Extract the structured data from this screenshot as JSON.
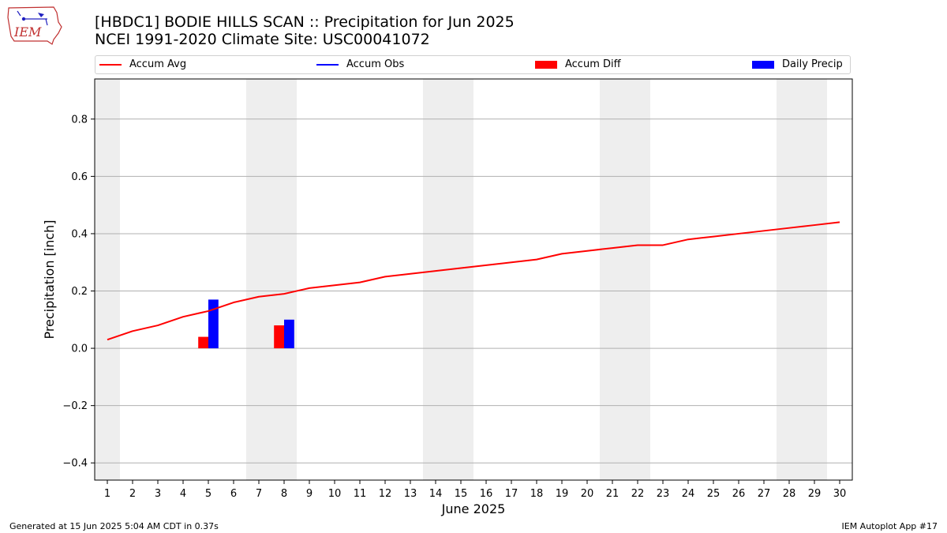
{
  "header": {
    "title_line1": "[HBDC1] BODIE HILLS SCAN :: Precipitation for Jun 2025",
    "title_line2": "NCEI 1991-2020 Climate Site: USC00041072"
  },
  "logo": {
    "text": "IEM"
  },
  "legend": {
    "items": [
      {
        "label": "Accum Avg",
        "kind": "line",
        "color": "#ff0000"
      },
      {
        "label": "Accum Obs",
        "kind": "line",
        "color": "#0000ff"
      },
      {
        "label": "Accum Diff",
        "kind": "box",
        "color": "#ff0000"
      },
      {
        "label": "Daily Precip",
        "kind": "box",
        "color": "#0000ff"
      }
    ]
  },
  "footer": {
    "left": "Generated at 15 Jun 2025 5:04 AM CDT in 0.37s",
    "right": "IEM Autoplot App #17"
  },
  "chart_data": {
    "type": "bar",
    "title": "[HBDC1] BODIE HILLS SCAN :: Precipitation for Jun 2025",
    "subtitle": "NCEI 1991-2020 Climate Site: USC00041072",
    "xlabel": "June 2025",
    "ylabel": "Precipitation [inch]",
    "xlim": [
      0.5,
      30.5
    ],
    "ylim": [
      -0.46,
      0.94
    ],
    "yticks": [
      -0.4,
      -0.2,
      0.0,
      0.2,
      0.4,
      0.6,
      0.8
    ],
    "ytick_labels": [
      "−0.4",
      "−0.2",
      "0.0",
      "0.2",
      "0.4",
      "0.6",
      "0.8"
    ],
    "days": [
      1,
      2,
      3,
      4,
      5,
      6,
      7,
      8,
      9,
      10,
      11,
      12,
      13,
      14,
      15,
      16,
      17,
      18,
      19,
      20,
      21,
      22,
      23,
      24,
      25,
      26,
      27,
      28,
      29,
      30
    ],
    "weekend_days": [
      1,
      7,
      8,
      14,
      15,
      21,
      22,
      28,
      29
    ],
    "grid": true,
    "legend_position": "top",
    "series": [
      {
        "name": "Accum Avg",
        "kind": "line",
        "color": "#ff0000",
        "values": [
          0.03,
          0.06,
          0.08,
          0.11,
          0.13,
          0.16,
          0.18,
          0.19,
          0.21,
          0.22,
          0.23,
          0.25,
          0.26,
          0.27,
          0.28,
          0.29,
          0.3,
          0.31,
          0.33,
          0.34,
          0.35,
          0.36,
          0.36,
          0.38,
          0.39,
          0.4,
          0.41,
          0.42,
          0.43,
          0.44
        ]
      },
      {
        "name": "Accum Obs",
        "kind": "line",
        "color": "#0000ff",
        "values": []
      },
      {
        "name": "Accum Diff",
        "kind": "bar",
        "color": "#ff0000",
        "points": [
          {
            "day": 5,
            "value": 0.04
          },
          {
            "day": 8,
            "value": 0.08
          }
        ]
      },
      {
        "name": "Daily Precip",
        "kind": "bar",
        "color": "#0000ff",
        "points": [
          {
            "day": 5,
            "value": 0.17
          },
          {
            "day": 8,
            "value": 0.1
          }
        ]
      }
    ]
  }
}
